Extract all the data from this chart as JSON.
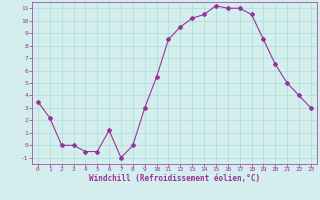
{
  "x": [
    0,
    1,
    2,
    3,
    4,
    5,
    6,
    7,
    8,
    9,
    10,
    11,
    12,
    13,
    14,
    15,
    16,
    17,
    18,
    19,
    20,
    21,
    22,
    23
  ],
  "y": [
    3.5,
    2.2,
    0.0,
    0.0,
    -0.5,
    -0.5,
    1.2,
    -1.0,
    0.0,
    3.0,
    5.5,
    8.5,
    9.5,
    10.2,
    10.5,
    11.2,
    11.0,
    11.0,
    10.5,
    8.5,
    6.5,
    5.0,
    4.0,
    3.0
  ],
  "line_color": "#993399",
  "marker": "D",
  "marker_size": 2,
  "bg_color": "#d4eeee",
  "grid_color": "#aadddd",
  "xlabel": "Windchill (Refroidissement éolien,°C)",
  "xlim": [
    -0.5,
    23.5
  ],
  "ylim": [
    -1.5,
    11.5
  ],
  "xticks": [
    0,
    1,
    2,
    3,
    4,
    5,
    6,
    7,
    8,
    9,
    10,
    11,
    12,
    13,
    14,
    15,
    16,
    17,
    18,
    19,
    20,
    21,
    22,
    23
  ],
  "yticks": [
    -1,
    0,
    1,
    2,
    3,
    4,
    5,
    6,
    7,
    8,
    9,
    10,
    11
  ],
  "tick_color": "#993399",
  "label_color": "#993399",
  "axis_color": "#993399",
  "spine_color": "#993399"
}
